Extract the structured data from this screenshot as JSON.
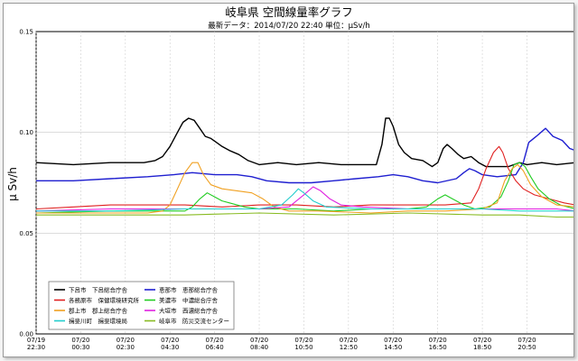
{
  "chart_data": {
    "type": "line",
    "title": "岐阜県 空間線量率グラフ",
    "subtitle": "最新データ：2014/07/20 22:40 単位：μSv/h",
    "ylabel": "μ Sv/h",
    "ylim": [
      0,
      0.15
    ],
    "yticks": [
      "0.00",
      "0.05",
      "0.10",
      "0.15"
    ],
    "grid": true,
    "legend_position": "bottom-left",
    "xlim": [
      0,
      1450
    ],
    "xticks": [
      {
        "x": 0,
        "l1": "07/19",
        "l2": "22:30"
      },
      {
        "x": 120,
        "l1": "07/20",
        "l2": "00:30"
      },
      {
        "x": 240,
        "l1": "07/20",
        "l2": "02:30"
      },
      {
        "x": 360,
        "l1": "07/20",
        "l2": "04:30"
      },
      {
        "x": 480,
        "l1": "07/20",
        "l2": "06:40"
      },
      {
        "x": 600,
        "l1": "07/20",
        "l2": "08:40"
      },
      {
        "x": 720,
        "l1": "07/20",
        "l2": "10:50"
      },
      {
        "x": 840,
        "l1": "07/20",
        "l2": "12:50"
      },
      {
        "x": 960,
        "l1": "07/20",
        "l2": "14:50"
      },
      {
        "x": 1080,
        "l1": "07/20",
        "l2": "16:50"
      },
      {
        "x": 1200,
        "l1": "07/20",
        "l2": "18:50"
      },
      {
        "x": 1320,
        "l1": "07/20",
        "l2": "20:50"
      }
    ],
    "series": [
      {
        "name": "下呂市　下呂総合庁舎",
        "color": "#000000",
        "points": [
          [
            0,
            0.085
          ],
          [
            100,
            0.084
          ],
          [
            200,
            0.085
          ],
          [
            290,
            0.085
          ],
          [
            320,
            0.086
          ],
          [
            340,
            0.088
          ],
          [
            360,
            0.093
          ],
          [
            380,
            0.1
          ],
          [
            395,
            0.105
          ],
          [
            410,
            0.107
          ],
          [
            425,
            0.106
          ],
          [
            440,
            0.102
          ],
          [
            455,
            0.098
          ],
          [
            470,
            0.097
          ],
          [
            485,
            0.095
          ],
          [
            500,
            0.093
          ],
          [
            520,
            0.091
          ],
          [
            545,
            0.089
          ],
          [
            570,
            0.086
          ],
          [
            600,
            0.084
          ],
          [
            650,
            0.085
          ],
          [
            700,
            0.084
          ],
          [
            760,
            0.085
          ],
          [
            820,
            0.084
          ],
          [
            880,
            0.084
          ],
          [
            915,
            0.084
          ],
          [
            930,
            0.094
          ],
          [
            940,
            0.107
          ],
          [
            950,
            0.107
          ],
          [
            960,
            0.103
          ],
          [
            975,
            0.094
          ],
          [
            990,
            0.09
          ],
          [
            1010,
            0.087
          ],
          [
            1040,
            0.086
          ],
          [
            1065,
            0.083
          ],
          [
            1080,
            0.085
          ],
          [
            1095,
            0.092
          ],
          [
            1105,
            0.094
          ],
          [
            1118,
            0.092
          ],
          [
            1135,
            0.089
          ],
          [
            1150,
            0.087
          ],
          [
            1170,
            0.088
          ],
          [
            1190,
            0.085
          ],
          [
            1210,
            0.083
          ],
          [
            1240,
            0.083
          ],
          [
            1270,
            0.083
          ],
          [
            1300,
            0.085
          ],
          [
            1320,
            0.084
          ],
          [
            1360,
            0.085
          ],
          [
            1400,
            0.084
          ],
          [
            1450,
            0.085
          ]
        ]
      },
      {
        "name": "恵那市　恵那総合庁舎",
        "color": "#1f1fd0",
        "points": [
          [
            0,
            0.076
          ],
          [
            100,
            0.076
          ],
          [
            200,
            0.077
          ],
          [
            300,
            0.078
          ],
          [
            370,
            0.079
          ],
          [
            420,
            0.08
          ],
          [
            480,
            0.079
          ],
          [
            540,
            0.079
          ],
          [
            580,
            0.078
          ],
          [
            620,
            0.076
          ],
          [
            680,
            0.075
          ],
          [
            740,
            0.075
          ],
          [
            800,
            0.076
          ],
          [
            860,
            0.077
          ],
          [
            920,
            0.078
          ],
          [
            960,
            0.079
          ],
          [
            1000,
            0.078
          ],
          [
            1040,
            0.076
          ],
          [
            1080,
            0.075
          ],
          [
            1130,
            0.077
          ],
          [
            1150,
            0.08
          ],
          [
            1165,
            0.082
          ],
          [
            1180,
            0.081
          ],
          [
            1200,
            0.079
          ],
          [
            1240,
            0.078
          ],
          [
            1290,
            0.079
          ],
          [
            1310,
            0.085
          ],
          [
            1325,
            0.095
          ],
          [
            1345,
            0.098
          ],
          [
            1370,
            0.102
          ],
          [
            1390,
            0.098
          ],
          [
            1415,
            0.096
          ],
          [
            1435,
            0.092
          ],
          [
            1450,
            0.091
          ]
        ]
      },
      {
        "name": "各務原市　保健環境研究所",
        "color": "#e02020",
        "points": [
          [
            0,
            0.062
          ],
          [
            100,
            0.063
          ],
          [
            200,
            0.064
          ],
          [
            300,
            0.064
          ],
          [
            400,
            0.064
          ],
          [
            500,
            0.063
          ],
          [
            600,
            0.064
          ],
          [
            700,
            0.064
          ],
          [
            800,
            0.063
          ],
          [
            900,
            0.064
          ],
          [
            1000,
            0.064
          ],
          [
            1100,
            0.064
          ],
          [
            1170,
            0.065
          ],
          [
            1190,
            0.072
          ],
          [
            1210,
            0.082
          ],
          [
            1230,
            0.09
          ],
          [
            1245,
            0.093
          ],
          [
            1255,
            0.09
          ],
          [
            1270,
            0.082
          ],
          [
            1290,
            0.076
          ],
          [
            1310,
            0.072
          ],
          [
            1340,
            0.069
          ],
          [
            1380,
            0.067
          ],
          [
            1420,
            0.065
          ],
          [
            1450,
            0.064
          ]
        ]
      },
      {
        "name": "美濃市　中濃総合庁舎",
        "color": "#22cc22",
        "points": [
          [
            0,
            0.06
          ],
          [
            200,
            0.061
          ],
          [
            400,
            0.061
          ],
          [
            420,
            0.063
          ],
          [
            440,
            0.067
          ],
          [
            460,
            0.07
          ],
          [
            480,
            0.068
          ],
          [
            500,
            0.066
          ],
          [
            520,
            0.065
          ],
          [
            560,
            0.063
          ],
          [
            600,
            0.062
          ],
          [
            700,
            0.062
          ],
          [
            800,
            0.061
          ],
          [
            900,
            0.062
          ],
          [
            1000,
            0.062
          ],
          [
            1050,
            0.063
          ],
          [
            1080,
            0.067
          ],
          [
            1100,
            0.069
          ],
          [
            1120,
            0.067
          ],
          [
            1150,
            0.064
          ],
          [
            1180,
            0.062
          ],
          [
            1220,
            0.063
          ],
          [
            1250,
            0.068
          ],
          [
            1270,
            0.076
          ],
          [
            1285,
            0.084
          ],
          [
            1300,
            0.085
          ],
          [
            1315,
            0.083
          ],
          [
            1330,
            0.078
          ],
          [
            1350,
            0.072
          ],
          [
            1380,
            0.067
          ],
          [
            1410,
            0.064
          ],
          [
            1450,
            0.062
          ]
        ]
      },
      {
        "name": "郡上市　郡上総合庁舎",
        "color": "#f0a020",
        "points": [
          [
            0,
            0.06
          ],
          [
            100,
            0.06
          ],
          [
            200,
            0.06
          ],
          [
            300,
            0.06
          ],
          [
            340,
            0.061
          ],
          [
            360,
            0.064
          ],
          [
            380,
            0.072
          ],
          [
            400,
            0.08
          ],
          [
            420,
            0.085
          ],
          [
            435,
            0.085
          ],
          [
            450,
            0.079
          ],
          [
            470,
            0.074
          ],
          [
            500,
            0.072
          ],
          [
            540,
            0.071
          ],
          [
            580,
            0.07
          ],
          [
            610,
            0.067
          ],
          [
            640,
            0.063
          ],
          [
            680,
            0.061
          ],
          [
            760,
            0.061
          ],
          [
            900,
            0.06
          ],
          [
            1000,
            0.061
          ],
          [
            1100,
            0.061
          ],
          [
            1200,
            0.062
          ],
          [
            1240,
            0.065
          ],
          [
            1260,
            0.076
          ],
          [
            1280,
            0.082
          ],
          [
            1295,
            0.084
          ],
          [
            1310,
            0.081
          ],
          [
            1330,
            0.074
          ],
          [
            1360,
            0.068
          ],
          [
            1400,
            0.064
          ],
          [
            1450,
            0.063
          ]
        ]
      },
      {
        "name": "大垣市　西濃総合庁舎",
        "color": "#e020e0",
        "points": [
          [
            0,
            0.061
          ],
          [
            200,
            0.062
          ],
          [
            400,
            0.062
          ],
          [
            600,
            0.062
          ],
          [
            680,
            0.063
          ],
          [
            720,
            0.069
          ],
          [
            745,
            0.073
          ],
          [
            765,
            0.071
          ],
          [
            790,
            0.067
          ],
          [
            820,
            0.064
          ],
          [
            880,
            0.063
          ],
          [
            1000,
            0.062
          ],
          [
            1200,
            0.062
          ],
          [
            1300,
            0.062
          ],
          [
            1400,
            0.062
          ],
          [
            1450,
            0.061
          ]
        ]
      },
      {
        "name": "揖斐川町　揖斐環境局",
        "color": "#22cccc",
        "points": [
          [
            0,
            0.061
          ],
          [
            200,
            0.061
          ],
          [
            400,
            0.062
          ],
          [
            600,
            0.062
          ],
          [
            660,
            0.064
          ],
          [
            690,
            0.069
          ],
          [
            705,
            0.072
          ],
          [
            720,
            0.07
          ],
          [
            745,
            0.066
          ],
          [
            780,
            0.063
          ],
          [
            900,
            0.062
          ],
          [
            1100,
            0.062
          ],
          [
            1200,
            0.062
          ],
          [
            1300,
            0.061
          ],
          [
            1450,
            0.061
          ]
        ]
      },
      {
        "name": "岐阜市　防災交流センター",
        "color": "#88bb22",
        "points": [
          [
            0,
            0.059
          ],
          [
            200,
            0.059
          ],
          [
            400,
            0.059
          ],
          [
            600,
            0.06
          ],
          [
            800,
            0.059
          ],
          [
            1000,
            0.06
          ],
          [
            1200,
            0.059
          ],
          [
            1300,
            0.059
          ],
          [
            1400,
            0.058
          ],
          [
            1450,
            0.058
          ]
        ]
      }
    ]
  }
}
